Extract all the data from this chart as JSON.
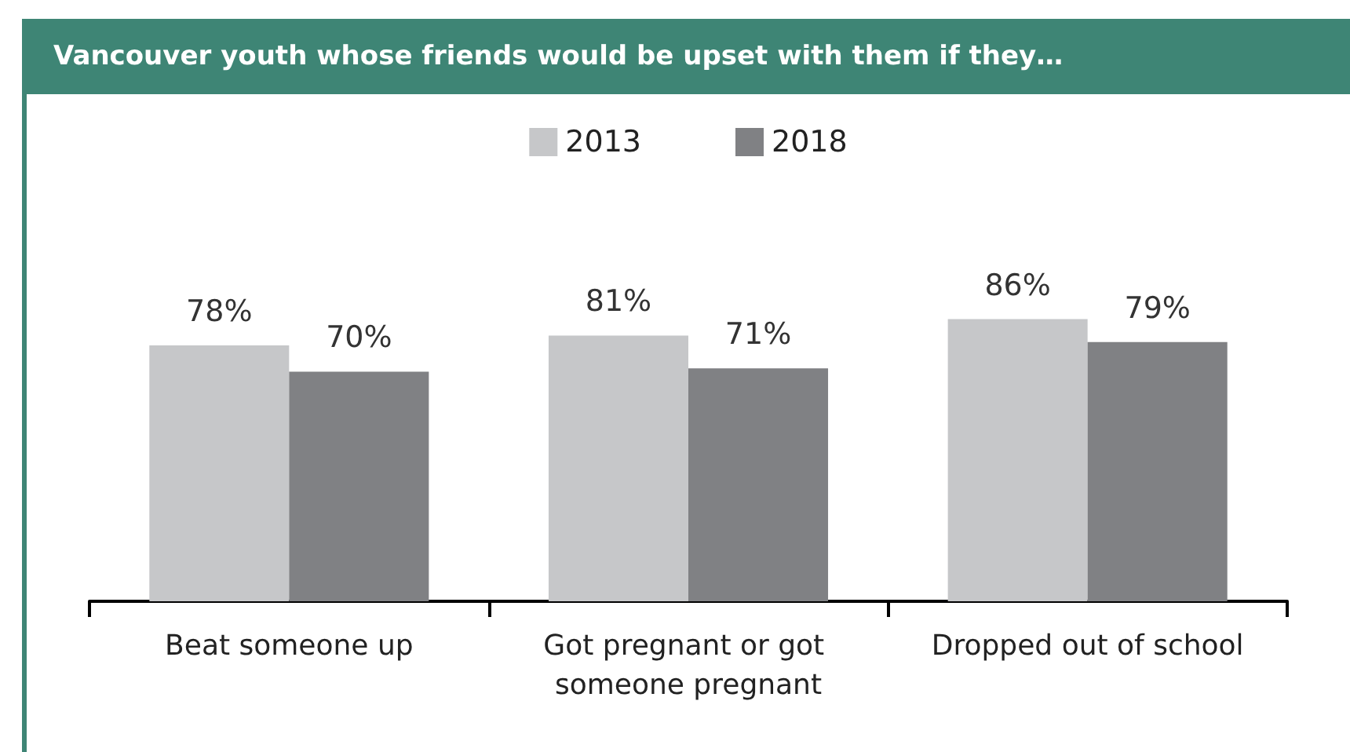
{
  "chart_data": {
    "type": "bar",
    "title": "Vancouver youth whose friends would be upset with them if they…",
    "categories": [
      "Beat someone up",
      "Got pregnant or got someone pregnant",
      "Dropped out of school"
    ],
    "series": [
      {
        "name": "2013",
        "color": "#c6c7c9",
        "values": [
          78,
          81,
          86
        ],
        "value_labels": [
          "78%",
          "81%",
          "86%"
        ]
      },
      {
        "name": "2018",
        "color": "#808184",
        "values": [
          70,
          71,
          79
        ],
        "value_labels": [
          "70%",
          "71%",
          "79%"
        ]
      }
    ],
    "legend": "top",
    "tick_labels": "x"
  }
}
